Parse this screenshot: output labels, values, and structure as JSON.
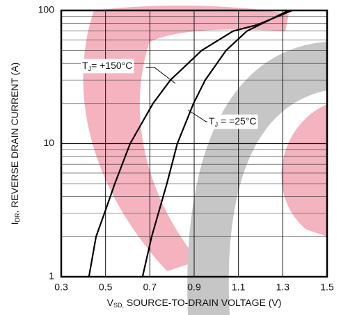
{
  "chart_data": {
    "type": "line",
    "x_label": [
      "V",
      "SD,",
      " SOURCE-TO-DRAIN VOLTAGE (V)"
    ],
    "y_label": [
      "I",
      "DR",
      ", REVERSE DRAIN CURRENT (A)"
    ],
    "log_y": true,
    "grid": true,
    "xlim": [
      0.3,
      1.5
    ],
    "xticks": [
      0.3,
      0.5,
      0.7,
      0.9,
      1.1,
      1.3,
      1.5
    ],
    "ylim": [
      1,
      100
    ],
    "yticks": [
      1,
      10,
      100
    ],
    "series": [
      {
        "name": [
          "T",
          "J",
          "= +150°C"
        ],
        "color": "#000000",
        "x": [
          0.425,
          0.457,
          0.495,
          0.542,
          0.611,
          0.714,
          0.793,
          0.934,
          1.076,
          1.185,
          1.343
        ],
        "values": [
          1,
          2,
          3,
          5,
          10,
          20,
          30,
          50,
          70,
          78,
          100
        ]
      },
      {
        "name": [
          "T",
          "J",
          " = =25°C"
        ],
        "color": "#000000",
        "x": [
          0.667,
          0.708,
          0.777,
          0.824,
          0.897,
          0.95,
          1.044,
          1.138,
          1.327
        ],
        "values": [
          1,
          2,
          5,
          10,
          20,
          30,
          50,
          70,
          100
        ]
      }
    ]
  }
}
